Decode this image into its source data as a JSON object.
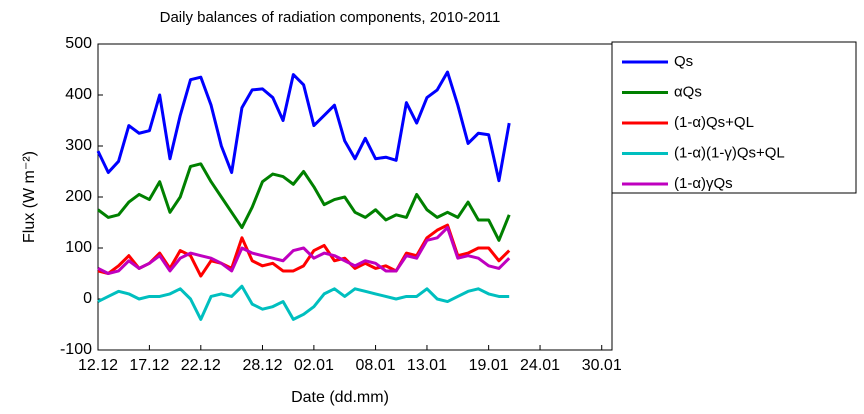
{
  "chart_data": {
    "type": "line",
    "title": "Daily balances of radiation components, 2010-2011",
    "xlabel": "Date (dd.mm)",
    "ylabel": "Flux (W m⁻²)",
    "x": [
      0,
      1,
      2,
      3,
      4,
      5,
      6,
      7,
      8,
      9,
      10,
      11,
      12,
      13,
      14,
      15,
      16,
      17,
      18,
      19,
      20,
      21,
      22,
      23,
      24,
      25,
      26,
      27,
      28,
      29,
      30,
      31,
      32,
      33,
      34,
      35,
      36,
      37,
      38,
      39,
      40
    ],
    "xlim": [
      0,
      50
    ],
    "xticks": [
      {
        "value": 0,
        "label": "12.12"
      },
      {
        "value": 5,
        "label": "17.12"
      },
      {
        "value": 10,
        "label": "22.12"
      },
      {
        "value": 16,
        "label": "28.12"
      },
      {
        "value": 21,
        "label": "02.01"
      },
      {
        "value": 27,
        "label": "08.01"
      },
      {
        "value": 32,
        "label": "13.01"
      },
      {
        "value": 38,
        "label": "19.01"
      },
      {
        "value": 43,
        "label": "24.01"
      },
      {
        "value": 49,
        "label": "30.01"
      }
    ],
    "ylim": [
      -100,
      500
    ],
    "yticks": [
      -100,
      0,
      100,
      200,
      300,
      400,
      500
    ],
    "grid": false,
    "legend": "outside-right",
    "series": [
      {
        "name": "Qs",
        "color": "#0000ff",
        "values": [
          290,
          248,
          270,
          340,
          325,
          330,
          400,
          275,
          360,
          430,
          435,
          380,
          300,
          248,
          375,
          410,
          412,
          395,
          350,
          440,
          420,
          340,
          360,
          380,
          310,
          275,
          315,
          275,
          278,
          272,
          385,
          345,
          395,
          410,
          445,
          380,
          305,
          325,
          322,
          232,
          345
        ]
      },
      {
        "name": "αQs",
        "color": "#008000",
        "values": [
          175,
          160,
          165,
          190,
          205,
          195,
          230,
          170,
          200,
          260,
          265,
          230,
          200,
          170,
          140,
          180,
          230,
          245,
          240,
          225,
          250,
          220,
          185,
          195,
          200,
          170,
          160,
          175,
          155,
          165,
          160,
          205,
          175,
          160,
          170,
          160,
          190,
          155,
          155,
          115,
          165
        ]
      },
      {
        "name": "(1-α)Qs+QL",
        "color": "#ff0000",
        "values": [
          55,
          50,
          65,
          85,
          60,
          70,
          90,
          60,
          95,
          85,
          45,
          75,
          70,
          60,
          120,
          75,
          65,
          70,
          55,
          55,
          65,
          95,
          105,
          75,
          80,
          60,
          70,
          60,
          65,
          55,
          90,
          85,
          120,
          135,
          145,
          85,
          90,
          100,
          100,
          75,
          95
        ]
      },
      {
        "name": "(1-α)(1-γ)Qs+QL",
        "color": "#00bfbf",
        "values": [
          -5,
          5,
          15,
          10,
          0,
          5,
          5,
          10,
          20,
          0,
          -40,
          5,
          10,
          5,
          25,
          -10,
          -20,
          -15,
          -5,
          -40,
          -30,
          -15,
          10,
          20,
          5,
          20,
          15,
          10,
          5,
          0,
          5,
          5,
          20,
          0,
          -5,
          5,
          15,
          20,
          10,
          5,
          5
        ]
      },
      {
        "name": "(1-α)γQs",
        "color": "#bf00bf",
        "values": [
          60,
          50,
          55,
          75,
          60,
          70,
          85,
          55,
          80,
          90,
          85,
          80,
          70,
          55,
          100,
          90,
          85,
          80,
          75,
          95,
          100,
          80,
          90,
          85,
          75,
          65,
          75,
          70,
          55,
          55,
          85,
          80,
          115,
          120,
          140,
          80,
          85,
          80,
          65,
          60,
          80
        ]
      }
    ]
  }
}
